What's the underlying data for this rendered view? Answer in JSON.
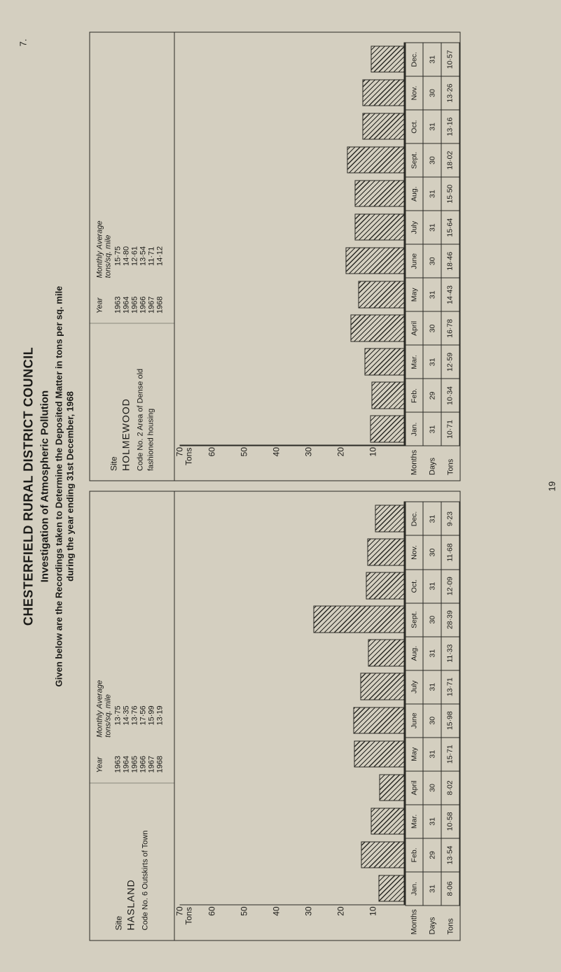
{
  "figure_number": "7.",
  "page_number": "19",
  "title": "CHESTERFIELD RURAL DISTRICT COUNCIL",
  "subtitle": "Investigation of Atmospheric Pollution",
  "description_line1": "Given below are the Recordings taken to Determine the Deposited Matter in tons per sq. mile",
  "description_line2": "during the year ending 31st December, 1968",
  "yaxis_label": "Tons",
  "yaxis_ticks": [
    "70",
    "60",
    "50",
    "40",
    "30",
    "20",
    "10"
  ],
  "ymax": 70,
  "row_labels": [
    "Months",
    "Days",
    "Tons"
  ],
  "months": [
    "Jan.",
    "Feb.",
    "Mar.",
    "April",
    "May",
    "June",
    "July",
    "Aug.",
    "Sept.",
    "Oct.",
    "Nov.",
    "Dec."
  ],
  "charts": [
    {
      "site_label": "Site",
      "site_name": "HASLAND",
      "code_line": "Code No. 6 Outskirts of Town",
      "avg_header": [
        "Year",
        "Monthly Average\ntons/sq. mile"
      ],
      "averages": [
        [
          "1963",
          "13·75"
        ],
        [
          "1964",
          "14·35"
        ],
        [
          "1965",
          "13·76"
        ],
        [
          "1966",
          "17·56"
        ],
        [
          "1967",
          "15·99"
        ],
        [
          "1968",
          "13·19"
        ]
      ],
      "days": [
        "31",
        "29",
        "31",
        "30",
        "31",
        "30",
        "31",
        "31",
        "30",
        "31",
        "30",
        "31"
      ],
      "tons": [
        "8·06",
        "13·54",
        "10·58",
        "8·02",
        "15·71",
        "15·98",
        "13·71",
        "11·33",
        "28·39",
        "12·09",
        "11·68",
        "9·23"
      ],
      "values": [
        8.06,
        13.54,
        10.58,
        8.02,
        15.71,
        15.98,
        13.71,
        11.33,
        28.39,
        12.09,
        11.68,
        9.23
      ]
    },
    {
      "site_label": "Site",
      "site_name": "HOLMEWOOD",
      "code_line": "Code No. 2 Area of Dense old\n                fashioned housing",
      "avg_header": [
        "Year",
        "Monthly Average\ntons/sq. mile"
      ],
      "averages": [
        [
          "1963",
          "15·75"
        ],
        [
          "1964",
          "14·80"
        ],
        [
          "1965",
          "12·61"
        ],
        [
          "1966",
          "13·54"
        ],
        [
          "1967",
          "11·71"
        ],
        [
          "1968",
          "14·12"
        ]
      ],
      "days": [
        "31",
        "29",
        "31",
        "30",
        "31",
        "30",
        "31",
        "31",
        "30",
        "31",
        "30",
        "31"
      ],
      "tons": [
        "10·71",
        "10·34",
        "12·59",
        "16·78",
        "14·43",
        "18·46",
        "15·64",
        "15·50",
        "18·02",
        "13·16",
        "13·26",
        "10·57"
      ],
      "values": [
        10.71,
        10.34,
        12.59,
        16.78,
        14.43,
        18.46,
        15.64,
        15.5,
        18.02,
        13.16,
        13.26,
        10.57
      ]
    }
  ],
  "colors": {
    "page_bg": "#d4cfc0",
    "ink": "#1b1b18"
  }
}
